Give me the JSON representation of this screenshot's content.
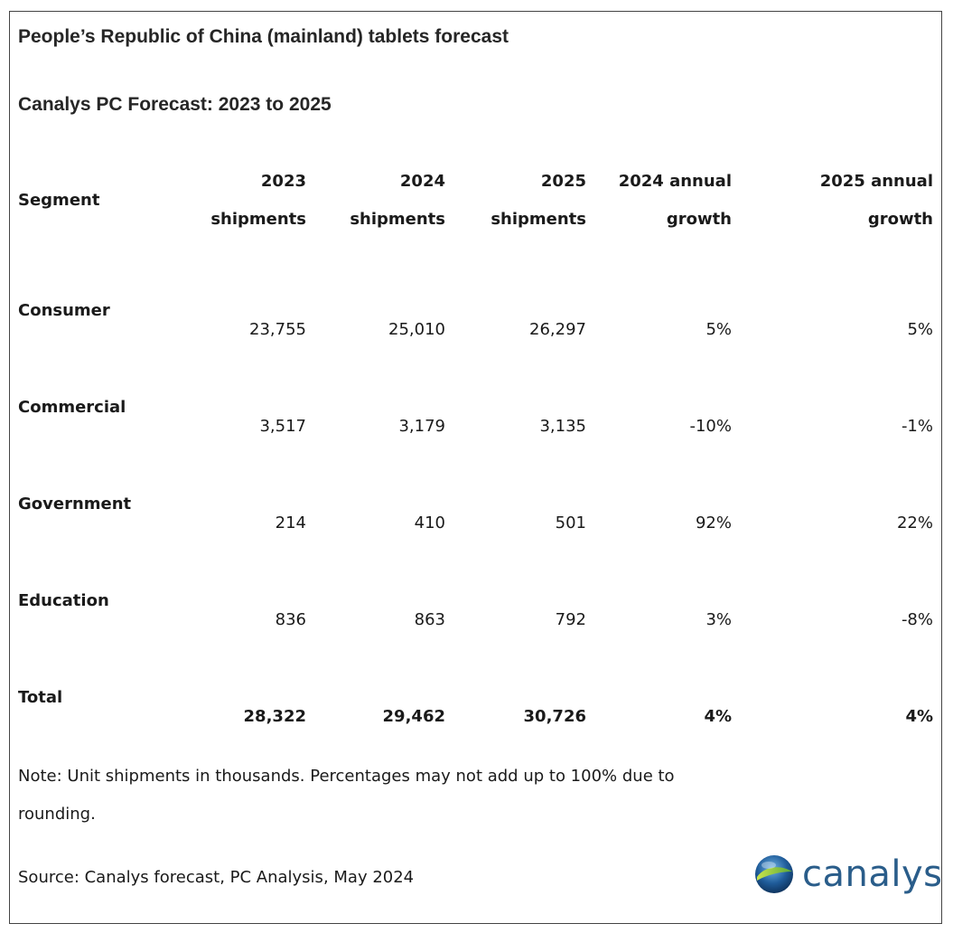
{
  "title": "People’s Republic of China (mainland) tablets forecast",
  "subtitle": "Canalys PC Forecast: 2023 to 2025",
  "columns": {
    "segment": "Segment",
    "c2023": [
      "2023",
      "shipments"
    ],
    "c2024": [
      "2024",
      "shipments"
    ],
    "c2025": [
      "2025",
      "shipments"
    ],
    "g2024": [
      "2024 annual",
      "growth"
    ],
    "g2025": [
      "2025 annual",
      "growth"
    ]
  },
  "rows": [
    {
      "segment": "Consumer",
      "s2023": "23,755",
      "s2024": "25,010",
      "s2025": "26,297",
      "g2024": "5%",
      "g2025": "5%"
    },
    {
      "segment": "Commercial",
      "s2023": "3,517",
      "s2024": "3,179",
      "s2025": "3,135",
      "g2024": "-10%",
      "g2025": "-1%"
    },
    {
      "segment": "Government",
      "s2023": "214",
      "s2024": "410",
      "s2025": "501",
      "g2024": "92%",
      "g2025": "22%"
    },
    {
      "segment": "Education",
      "s2023": "836",
      "s2024": "863",
      "s2025": "792",
      "g2024": "3%",
      "g2025": "-8%"
    },
    {
      "segment": "Total",
      "s2023": "28,322",
      "s2024": "29,462",
      "s2025": "30,726",
      "g2024": "4%",
      "g2025": "4%"
    }
  ],
  "note": "Note: Unit shipments in thousands. Percentages may not add up to 100% due to rounding.",
  "source": "Source: Canalys forecast, PC Analysis, May 2024",
  "logo": {
    "text": "canalys",
    "icon": "canalys-globe-icon",
    "color": "#2a5d8a"
  },
  "chart_data": {
    "type": "table",
    "title": "People’s Republic of China (mainland) tablets forecast",
    "subtitle": "Canalys PC Forecast: 2023 to 2025",
    "header": [
      "Segment",
      "2023 shipments",
      "2024 shipments",
      "2025 shipments",
      "2024 annual growth",
      "2025 annual growth"
    ],
    "rows": [
      [
        "Consumer",
        23755,
        25010,
        26297,
        "5%",
        "5%"
      ],
      [
        "Commercial",
        3517,
        3179,
        3135,
        "-10%",
        "-1%"
      ],
      [
        "Government",
        214,
        410,
        501,
        "92%",
        "22%"
      ],
      [
        "Education",
        836,
        863,
        792,
        "3%",
        "-8%"
      ],
      [
        "Total",
        28322,
        29462,
        30726,
        "4%",
        "4%"
      ]
    ]
  }
}
